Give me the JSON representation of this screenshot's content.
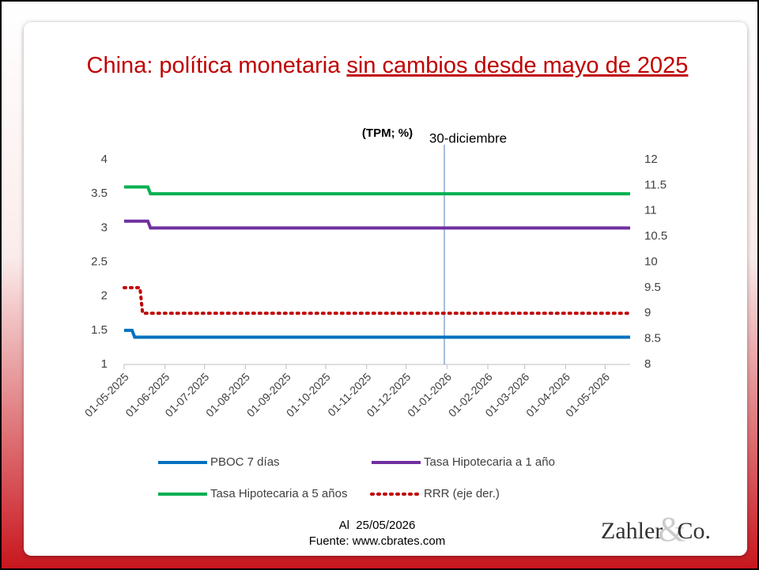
{
  "chart_data": {
    "type": "line",
    "title": "China: política monetaria ",
    "title_underlined": "sin cambios desde mayo de 2025",
    "subtitle": "(TPM; %)",
    "annotation": {
      "label": "30-diciembre",
      "x": "2025-12-30"
    },
    "xlim": [
      "2025-05-01",
      "2026-05-20"
    ],
    "xticks": [
      {
        "value": "2025-05-01",
        "label": "01-05-2025"
      },
      {
        "value": "2025-06-01",
        "label": "01-06-2025"
      },
      {
        "value": "2025-07-01",
        "label": "01-07-2025"
      },
      {
        "value": "2025-08-01",
        "label": "01-08-2025"
      },
      {
        "value": "2025-09-01",
        "label": "01-09-2025"
      },
      {
        "value": "2025-10-01",
        "label": "01-10-2025"
      },
      {
        "value": "2025-11-01",
        "label": "01-11-2025"
      },
      {
        "value": "2025-12-01",
        "label": "01-12-2025"
      },
      {
        "value": "2026-01-01",
        "label": "01-01-2026"
      },
      {
        "value": "2026-02-01",
        "label": "01-02-2026"
      },
      {
        "value": "2026-03-01",
        "label": "01-03-2026"
      },
      {
        "value": "2026-04-01",
        "label": "01-04-2026"
      },
      {
        "value": "2026-05-01",
        "label": "01-05-2026"
      }
    ],
    "ylim": [
      1,
      4
    ],
    "yticks": [
      1,
      1.5,
      2,
      2.5,
      3,
      3.5,
      4
    ],
    "y2lim": [
      8,
      12
    ],
    "y2ticks": [
      8,
      8.5,
      9,
      9.5,
      10,
      10.5,
      11,
      11.5,
      12
    ],
    "series": [
      {
        "name": "PBOC 7 días",
        "color": "#0070c0",
        "x": [
          "2025-05-01",
          "2025-05-07",
          "2025-05-09",
          "2026-05-20"
        ],
        "values": [
          1.5,
          1.5,
          1.4,
          1.4
        ]
      },
      {
        "name": "Tasa Hipotecaria a 1 año",
        "color": "#7030a0",
        "x": [
          "2025-05-01",
          "2025-05-19",
          "2025-05-21",
          "2026-05-20"
        ],
        "values": [
          3.1,
          3.1,
          3.0,
          3.0
        ]
      },
      {
        "name": "Tasa Hipotecaria a 5 años",
        "color": "#00b050",
        "x": [
          "2025-05-01",
          "2025-05-19",
          "2025-05-21",
          "2026-05-20"
        ],
        "values": [
          3.6,
          3.6,
          3.5,
          3.5
        ]
      },
      {
        "name": "RRR (eje der.)",
        "color": "#c00000",
        "axis": "y2",
        "dashed": true,
        "x": [
          "2025-05-01",
          "2025-05-13",
          "2025-05-15",
          "2026-05-20"
        ],
        "values": [
          9.5,
          9.5,
          9.0,
          9.0
        ]
      }
    ],
    "footer": [
      "Al  25/05/2026",
      "Fuente: www.cbrates.com"
    ],
    "logo": [
      "Zahler",
      "&",
      "Co."
    ]
  }
}
